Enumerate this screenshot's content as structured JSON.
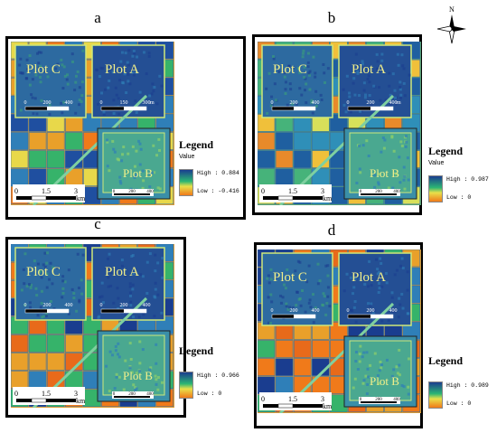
{
  "panels": [
    {
      "letter": "a",
      "plot_c": "Plot C",
      "plot_a": "Plot A",
      "plot_b": "Plot B",
      "scale_main": [
        "0",
        "1.5",
        "3"
      ],
      "scale_main_unit": "km",
      "scale_c": [
        "0",
        "200",
        "400"
      ],
      "scale_a": [
        "0",
        "150",
        "300"
      ],
      "scale_a_unit": "m",
      "scale_b": [
        "0",
        "200",
        "400"
      ],
      "legend_title": "Legend",
      "legend_value": "Value",
      "legend_high": "High : 0.884",
      "legend_low": "Low : -0.416"
    },
    {
      "letter": "b",
      "plot_c": "Plot C",
      "plot_a": "Plot A",
      "plot_b": "Plot B",
      "scale_main": [
        "0",
        "1.5",
        "3"
      ],
      "scale_main_unit": "km",
      "scale_c": [
        "0",
        "200",
        "400"
      ],
      "scale_a": [
        "0",
        "200",
        "400"
      ],
      "scale_a_unit": "m",
      "scale_b": [
        "0",
        "200",
        "400"
      ],
      "legend_title": "Legend",
      "legend_value": "Value",
      "legend_high": "High : 0.987",
      "legend_low": "Low : 0"
    },
    {
      "letter": "c",
      "plot_c": "Plot C",
      "plot_a": "Plot A",
      "plot_b": "Plot B",
      "scale_main": [
        "0",
        "1.5",
        "3"
      ],
      "scale_main_unit": "km",
      "scale_c": [
        "0",
        "200",
        "400"
      ],
      "scale_a": [
        "0",
        "200",
        "400"
      ],
      "scale_a_unit": "",
      "scale_b": [
        "0",
        "200",
        "400"
      ],
      "legend_title": "Legend",
      "legend_value": "",
      "legend_high": "High : 0.966",
      "legend_low": "Low : 0"
    },
    {
      "letter": "d",
      "plot_c": "Plot C",
      "plot_a": "Plot A",
      "plot_b": "Plot B",
      "scale_main": [
        "0",
        "1.5",
        "3"
      ],
      "scale_main_unit": "km",
      "scale_c": [
        "0",
        "200",
        "400"
      ],
      "scale_a": [
        "0",
        "200",
        "400"
      ],
      "scale_a_unit": "",
      "scale_b": [
        "0",
        "200",
        "400"
      ],
      "legend_title": "Legend",
      "legend_value": "",
      "legend_high": "High : 0.989",
      "legend_low": "Low : 0"
    }
  ],
  "north_label": "N",
  "colors": {
    "high": "#1a3d8f",
    "mid": "#2bb673",
    "low": "#f07a1a",
    "plot_label": "#f3f08a",
    "frame": "#000000"
  }
}
